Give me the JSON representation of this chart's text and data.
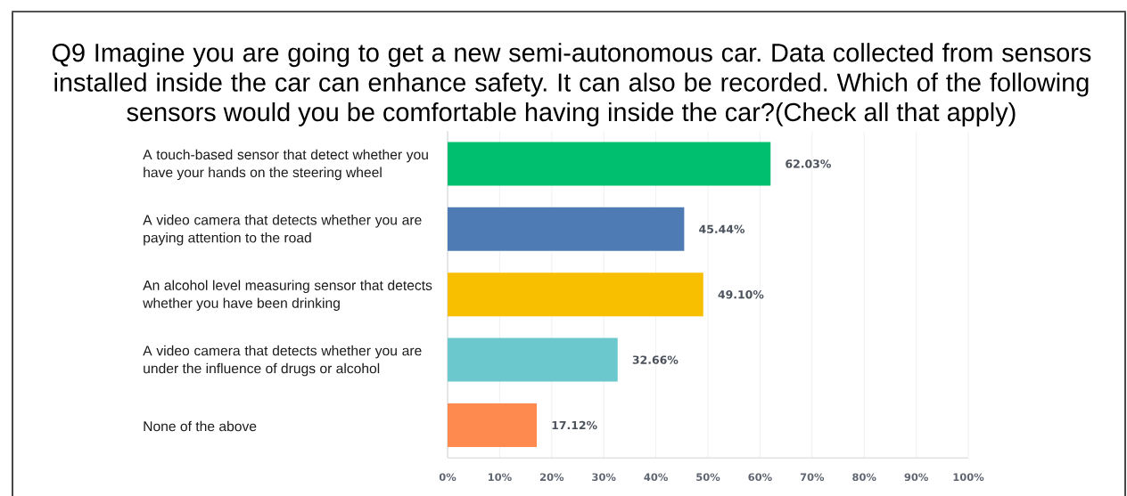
{
  "chart_data": {
    "type": "bar",
    "orientation": "horizontal",
    "title": "Q9 Imagine you are going to get a new semi-autonomous car. Data collected from sensors installed inside the car can enhance safety. It can also be recorded. Which of the following sensors would you be comfortable having inside the car?(Check all that apply)",
    "categories": [
      "A touch-based sensor that detect whether you have your hands on the steering wheel",
      "A video camera that detects whether you are paying attention to the road",
      "An alcohol level measuring sensor that detects whether you have been drinking",
      "A video camera that detects whether you are under the influence of drugs or alcohol",
      "None of the above"
    ],
    "values": [
      62.03,
      45.44,
      49.1,
      32.66,
      17.12
    ],
    "value_labels": [
      "62.03%",
      "45.44%",
      "49.10%",
      "32.66%",
      "17.12%"
    ],
    "colors": [
      "#00bf6f",
      "#4f7bb5",
      "#f8be00",
      "#6bc8cd",
      "#ff8a4f"
    ],
    "xlim": [
      0,
      100
    ],
    "xticks": [
      {
        "value": 0,
        "label": "0%"
      },
      {
        "value": 10,
        "label": "10%"
      },
      {
        "value": 20,
        "label": "20%"
      },
      {
        "value": 30,
        "label": "30%"
      },
      {
        "value": 40,
        "label": "40%"
      },
      {
        "value": 50,
        "label": "50%"
      },
      {
        "value": 60,
        "label": "60%"
      },
      {
        "value": 70,
        "label": "70%"
      },
      {
        "value": 80,
        "label": "80%"
      },
      {
        "value": 90,
        "label": "90%"
      },
      {
        "value": 100,
        "label": "100%"
      }
    ],
    "grid": "x"
  }
}
